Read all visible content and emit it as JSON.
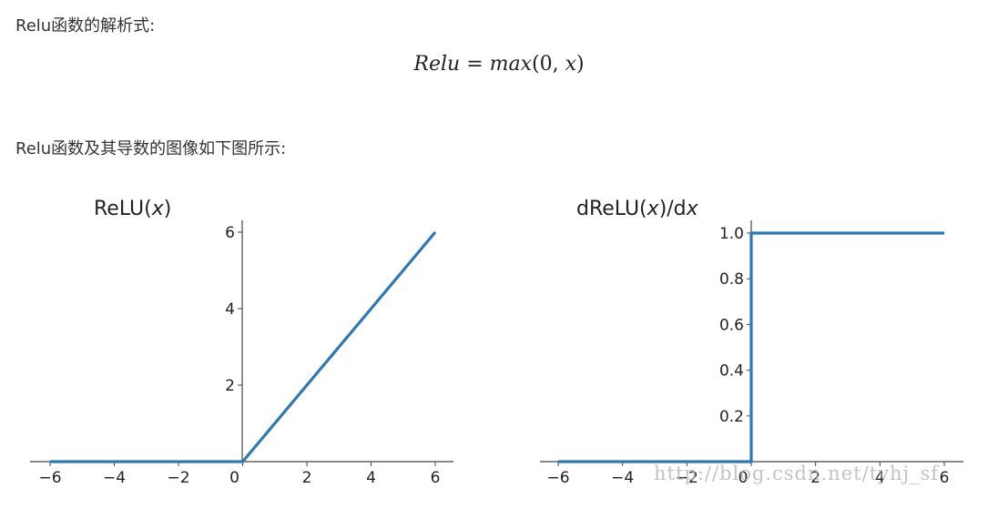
{
  "intro": {
    "formula_heading": "Relu函数的解析式:",
    "graphs_heading": "Relu函数及其导数的图像如下图所示:"
  },
  "formula": {
    "lhs": "Relu",
    "equals": "=",
    "rhs_fn": "max",
    "rhs_args_open": "(0, ",
    "rhs_var": "x",
    "rhs_args_close": ")"
  },
  "watermark": "http://blog.csdn.net/tyhj_sf",
  "colors": {
    "line": "#2e78b3",
    "axis": "#444444"
  },
  "chart_data": [
    {
      "type": "line",
      "title": "ReLU(x)",
      "title_parts": [
        "ReLU(",
        "x",
        ")"
      ],
      "x": [
        -6,
        0,
        6
      ],
      "y": [
        0,
        0,
        6
      ],
      "xlim": [
        -6,
        6
      ],
      "ylim": [
        0,
        6
      ],
      "xticks": [
        -6,
        -4,
        -2,
        0,
        2,
        4,
        6
      ],
      "xtick_labels": [
        "−6",
        "−4",
        "−2",
        "0",
        "2",
        "4",
        "6"
      ],
      "yticks": [
        2,
        4,
        6
      ],
      "ytick_labels": [
        "2",
        "4",
        "6"
      ],
      "xlabel": "",
      "ylabel": "",
      "grid": false
    },
    {
      "type": "line",
      "title": "dReLU(x)/dx",
      "title_parts": [
        "dReLU(",
        "x",
        ")/d",
        "x"
      ],
      "x": [
        -6,
        0,
        0,
        6
      ],
      "y": [
        0,
        0,
        1,
        1
      ],
      "xlim": [
        -6,
        6
      ],
      "ylim": [
        0,
        1
      ],
      "xticks": [
        -6,
        -4,
        -2,
        0,
        2,
        4,
        6
      ],
      "xtick_labels": [
        "−6",
        "−4",
        "−2",
        "0",
        "2",
        "4",
        "6"
      ],
      "yticks": [
        0.2,
        0.4,
        0.6,
        0.8,
        1.0
      ],
      "ytick_labels": [
        "0.2",
        "0.4",
        "0.6",
        "0.8",
        "1.0"
      ],
      "xlabel": "",
      "ylabel": "",
      "grid": false
    }
  ]
}
